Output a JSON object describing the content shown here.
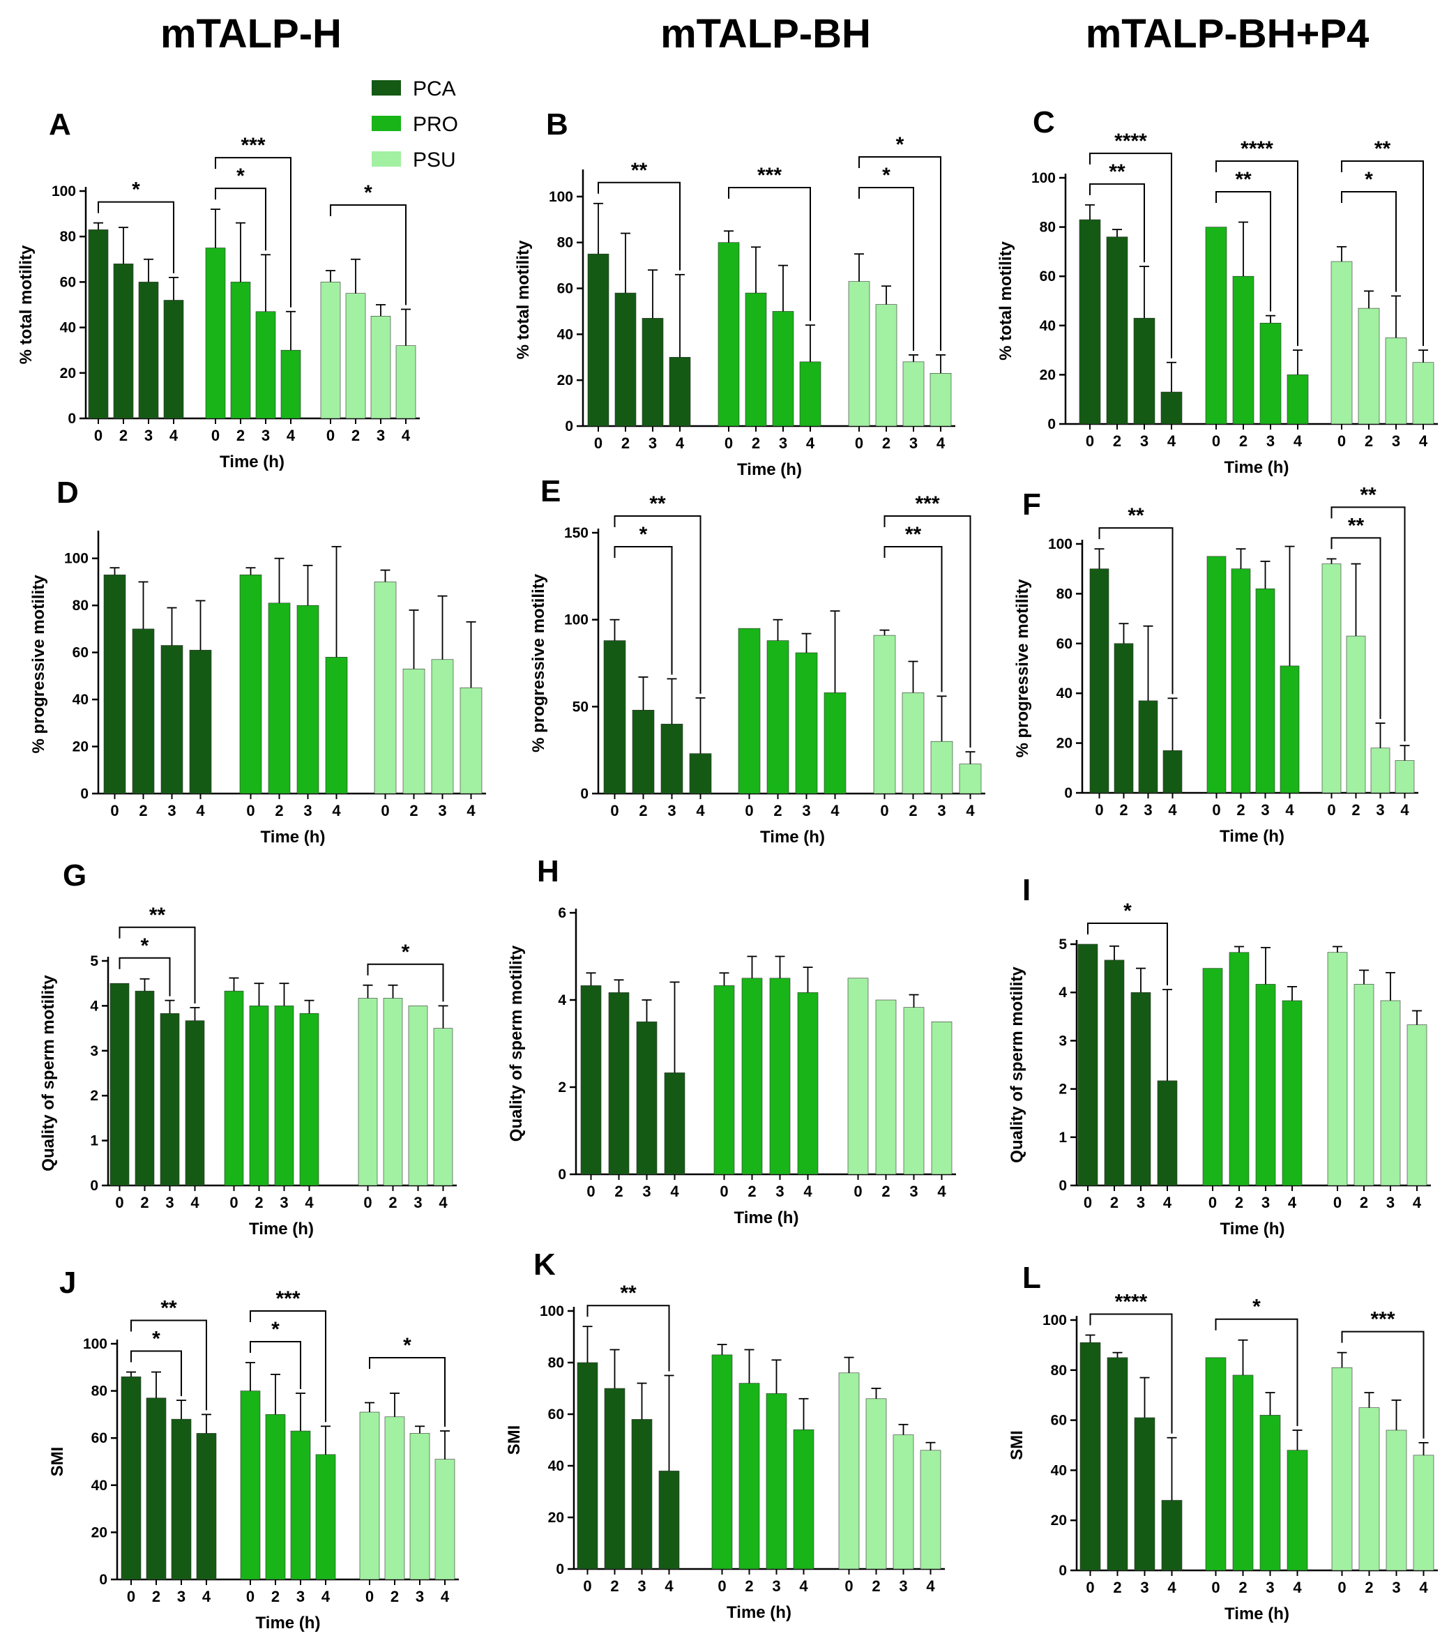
{
  "columns": [
    "mTALP-H",
    "mTALP-BH",
    "mTALP-BH+P4"
  ],
  "legend": [
    "PCA",
    "PRO",
    "PSU"
  ],
  "colors": {
    "PCA": "#145a14",
    "PRO": "#18b418",
    "PSU": "#a2f0a2",
    "axis": "#000000"
  },
  "chart_data": [
    {
      "id": "A",
      "type": "bar",
      "label": "A",
      "ylabel": "% total motility",
      "xlabel": "Time (h)",
      "ylim": [
        0,
        100
      ],
      "yticks": [
        0,
        20,
        40,
        60,
        80,
        100
      ],
      "xticklabels": [
        "0",
        "2",
        "3",
        "4"
      ],
      "series": [
        {
          "name": "PCA",
          "values": [
            83,
            68,
            60,
            52
          ],
          "errors": [
            3,
            16,
            10,
            10
          ]
        },
        {
          "name": "PRO",
          "values": [
            75,
            60,
            47,
            30
          ],
          "errors": [
            17,
            26,
            25,
            17
          ]
        },
        {
          "name": "PSU",
          "values": [
            60,
            55,
            45,
            32
          ],
          "errors": [
            5,
            15,
            5,
            16
          ]
        }
      ],
      "significance": [
        {
          "series": "PCA",
          "from": 0,
          "to": 3,
          "stars": "*"
        },
        {
          "series": "PRO",
          "from": 0,
          "to": 2,
          "stars": "*"
        },
        {
          "series": "PRO",
          "from": 0,
          "to": 3,
          "stars": "***"
        },
        {
          "series": "PSU",
          "from": 0,
          "to": 3,
          "stars": "*"
        }
      ]
    },
    {
      "id": "B",
      "type": "bar",
      "label": "B",
      "ylabel": "% total motility",
      "xlabel": "Time (h)",
      "ylim": [
        0,
        110
      ],
      "yticks": [
        0,
        20,
        40,
        60,
        80,
        100
      ],
      "xticklabels": [
        "0",
        "2",
        "3",
        "4"
      ],
      "series": [
        {
          "name": "PCA",
          "values": [
            75,
            58,
            47,
            30
          ],
          "errors": [
            22,
            26,
            21,
            36
          ]
        },
        {
          "name": "PRO",
          "values": [
            80,
            58,
            50,
            28
          ],
          "errors": [
            5,
            20,
            20,
            16
          ]
        },
        {
          "name": "PSU",
          "values": [
            63,
            53,
            28,
            23
          ],
          "errors": [
            12,
            8,
            3,
            8
          ]
        }
      ],
      "significance": [
        {
          "series": "PCA",
          "from": 0,
          "to": 3,
          "stars": "**"
        },
        {
          "series": "PRO",
          "from": 0,
          "to": 3,
          "stars": "***"
        },
        {
          "series": "PSU",
          "from": 0,
          "to": 2,
          "stars": "*"
        },
        {
          "series": "PSU",
          "from": 0,
          "to": 3,
          "stars": "*"
        }
      ]
    },
    {
      "id": "C",
      "type": "bar",
      "label": "C",
      "ylabel": "% total motility",
      "xlabel": "Time (h)",
      "ylim": [
        0,
        100
      ],
      "yticks": [
        0,
        20,
        40,
        60,
        80,
        100
      ],
      "xticklabels": [
        "0",
        "2",
        "3",
        "4"
      ],
      "series": [
        {
          "name": "PCA",
          "values": [
            83,
            76,
            43,
            13
          ],
          "errors": [
            6,
            3,
            21,
            12
          ]
        },
        {
          "name": "PRO",
          "values": [
            80,
            60,
            41,
            20
          ],
          "errors": [
            0,
            22,
            3,
            10
          ]
        },
        {
          "name": "PSU",
          "values": [
            66,
            47,
            35,
            25
          ],
          "errors": [
            6,
            7,
            17,
            5
          ]
        }
      ],
      "significance": [
        {
          "series": "PCA",
          "from": 0,
          "to": 2,
          "stars": "**"
        },
        {
          "series": "PCA",
          "from": 0,
          "to": 3,
          "stars": "****"
        },
        {
          "series": "PRO",
          "from": 0,
          "to": 2,
          "stars": "**"
        },
        {
          "series": "PRO",
          "from": 0,
          "to": 3,
          "stars": "****"
        },
        {
          "series": "PSU",
          "from": 0,
          "to": 2,
          "stars": "*"
        },
        {
          "series": "PSU",
          "from": 0,
          "to": 3,
          "stars": "**"
        }
      ]
    },
    {
      "id": "D",
      "type": "bar",
      "label": "D",
      "ylabel": "% progressive motility",
      "xlabel": "Time (h)",
      "ylim": [
        0,
        110
      ],
      "yticks": [
        0,
        20,
        40,
        60,
        80,
        100
      ],
      "xticklabels": [
        "0",
        "2",
        "3",
        "4"
      ],
      "series": [
        {
          "name": "PCA",
          "values": [
            93,
            70,
            63,
            61
          ],
          "errors": [
            3,
            20,
            16,
            21
          ]
        },
        {
          "name": "PRO",
          "values": [
            93,
            81,
            80,
            58
          ],
          "errors": [
            3,
            19,
            17,
            47
          ]
        },
        {
          "name": "PSU",
          "values": [
            90,
            53,
            57,
            45
          ],
          "errors": [
            5,
            25,
            27,
            28
          ]
        }
      ],
      "significance": []
    },
    {
      "id": "E",
      "type": "bar",
      "label": "E",
      "ylabel": "% progressive motility",
      "xlabel": "Time (h)",
      "ylim": [
        0,
        150
      ],
      "yticks": [
        0,
        50,
        100,
        150
      ],
      "xticklabels": [
        "0",
        "2",
        "3",
        "4"
      ],
      "series": [
        {
          "name": "PCA",
          "values": [
            88,
            48,
            40,
            23
          ],
          "errors": [
            12,
            19,
            26,
            32
          ]
        },
        {
          "name": "PRO",
          "values": [
            95,
            88,
            81,
            58
          ],
          "errors": [
            0,
            12,
            11,
            47
          ]
        },
        {
          "name": "PSU",
          "values": [
            91,
            58,
            30,
            17
          ],
          "errors": [
            3,
            18,
            26,
            7
          ]
        }
      ],
      "significance": [
        {
          "series": "PCA",
          "from": 0,
          "to": 2,
          "stars": "*"
        },
        {
          "series": "PCA",
          "from": 0,
          "to": 3,
          "stars": "**"
        },
        {
          "series": "PSU",
          "from": 0,
          "to": 2,
          "stars": "**"
        },
        {
          "series": "PSU",
          "from": 0,
          "to": 3,
          "stars": "***"
        }
      ]
    },
    {
      "id": "F",
      "type": "bar",
      "label": "F",
      "ylabel": "% progressive motility",
      "xlabel": "Time (h)",
      "ylim": [
        0,
        100
      ],
      "yticks": [
        0,
        20,
        40,
        60,
        80,
        100
      ],
      "xticklabels": [
        "0",
        "2",
        "3",
        "4"
      ],
      "series": [
        {
          "name": "PCA",
          "values": [
            90,
            60,
            37,
            17
          ],
          "errors": [
            8,
            8,
            30,
            21
          ]
        },
        {
          "name": "PRO",
          "values": [
            95,
            90,
            82,
            51
          ],
          "errors": [
            0,
            8,
            11,
            48
          ]
        },
        {
          "name": "PSU",
          "values": [
            92,
            63,
            18,
            13
          ],
          "errors": [
            2,
            29,
            10,
            6
          ]
        }
      ],
      "significance": [
        {
          "series": "PCA",
          "from": 0,
          "to": 3,
          "stars": "**"
        },
        {
          "series": "PSU",
          "from": 0,
          "to": 2,
          "stars": "**"
        },
        {
          "series": "PSU",
          "from": 0,
          "to": 3,
          "stars": "**"
        }
      ]
    },
    {
      "id": "G",
      "type": "bar",
      "label": "G",
      "ylabel": "Quality of sperm motility",
      "xlabel": "Time (h)",
      "ylim": [
        0,
        5
      ],
      "yticks": [
        0,
        1,
        2,
        3,
        4,
        5
      ],
      "xticklabels": [
        "0",
        "2",
        "3",
        "4"
      ],
      "series": [
        {
          "name": "PCA",
          "values": [
            4.5,
            4.33,
            3.83,
            3.67
          ],
          "errors": [
            0,
            0.27,
            0.29,
            0.29
          ]
        },
        {
          "name": "PRO",
          "values": [
            4.33,
            4.0,
            4.0,
            3.83
          ],
          "errors": [
            0.29,
            0.5,
            0.5,
            0.29
          ]
        },
        {
          "name": "PSU",
          "values": [
            4.17,
            4.17,
            4.0,
            3.5
          ],
          "errors": [
            0.29,
            0.29,
            0,
            0.5
          ]
        }
      ],
      "significance": [
        {
          "series": "PCA",
          "from": 0,
          "to": 2,
          "stars": "*"
        },
        {
          "series": "PCA",
          "from": 0,
          "to": 3,
          "stars": "**"
        },
        {
          "series": "PSU",
          "from": 0,
          "to": 3,
          "stars": "*"
        }
      ]
    },
    {
      "id": "H",
      "type": "bar",
      "label": "H",
      "ylabel": "Quality of sperm motility",
      "xlabel": "Time (h)",
      "ylim": [
        0,
        6
      ],
      "yticks": [
        0,
        2,
        4,
        6
      ],
      "xticklabels": [
        "0",
        "2",
        "3",
        "4"
      ],
      "series": [
        {
          "name": "PCA",
          "values": [
            4.33,
            4.17,
            3.5,
            2.33
          ],
          "errors": [
            0.29,
            0.29,
            0.5,
            2.08
          ]
        },
        {
          "name": "PRO",
          "values": [
            4.33,
            4.5,
            4.5,
            4.17
          ],
          "errors": [
            0.29,
            0.5,
            0.5,
            0.58
          ]
        },
        {
          "name": "PSU",
          "values": [
            4.5,
            4.0,
            3.83,
            3.5
          ],
          "errors": [
            0,
            0,
            0.29,
            0
          ]
        }
      ],
      "significance": []
    },
    {
      "id": "I",
      "type": "bar",
      "label": "I",
      "ylabel": "Quality of sperm motility",
      "xlabel": "Time (h)",
      "ylim": [
        0,
        5
      ],
      "yticks": [
        0,
        1,
        2,
        3,
        4,
        5
      ],
      "xticklabels": [
        "0",
        "2",
        "3",
        "4"
      ],
      "series": [
        {
          "name": "PCA",
          "values": [
            5.0,
            4.67,
            4.0,
            2.17
          ],
          "errors": [
            0,
            0.29,
            0.5,
            1.89
          ]
        },
        {
          "name": "PRO",
          "values": [
            4.5,
            4.83,
            4.17,
            3.83
          ],
          "errors": [
            0,
            0.12,
            0.76,
            0.29
          ]
        },
        {
          "name": "PSU",
          "values": [
            4.83,
            4.17,
            3.83,
            3.33
          ],
          "errors": [
            0.12,
            0.29,
            0.58,
            0.29
          ]
        }
      ],
      "significance": [
        {
          "series": "PCA",
          "from": 0,
          "to": 3,
          "stars": "*"
        }
      ]
    },
    {
      "id": "J",
      "type": "bar",
      "label": "J",
      "ylabel": "SMI",
      "xlabel": "Time (h)",
      "ylim": [
        0,
        100
      ],
      "yticks": [
        0,
        20,
        40,
        60,
        80,
        100
      ],
      "xticklabels": [
        "0",
        "2",
        "3",
        "4"
      ],
      "series": [
        {
          "name": "PCA",
          "values": [
            86,
            77,
            68,
            62
          ],
          "errors": [
            2,
            11,
            8,
            8
          ]
        },
        {
          "name": "PRO",
          "values": [
            80,
            70,
            63,
            53
          ],
          "errors": [
            12,
            17,
            16,
            12
          ]
        },
        {
          "name": "PSU",
          "values": [
            71,
            69,
            62,
            51
          ],
          "errors": [
            4,
            10,
            3,
            12
          ]
        }
      ],
      "significance": [
        {
          "series": "PCA",
          "from": 0,
          "to": 2,
          "stars": "*"
        },
        {
          "series": "PCA",
          "from": 0,
          "to": 3,
          "stars": "**"
        },
        {
          "series": "PRO",
          "from": 0,
          "to": 2,
          "stars": "*"
        },
        {
          "series": "PRO",
          "from": 0,
          "to": 3,
          "stars": "***"
        },
        {
          "series": "PSU",
          "from": 0,
          "to": 3,
          "stars": "*"
        }
      ]
    },
    {
      "id": "K",
      "type": "bar",
      "label": "K",
      "ylabel": "SMI",
      "xlabel": "Time (h)",
      "ylim": [
        0,
        100
      ],
      "yticks": [
        0,
        20,
        40,
        60,
        80,
        100
      ],
      "xticklabels": [
        "0",
        "2",
        "3",
        "4"
      ],
      "series": [
        {
          "name": "PCA",
          "values": [
            80,
            70,
            58,
            38
          ],
          "errors": [
            14,
            15,
            14,
            37
          ]
        },
        {
          "name": "PRO",
          "values": [
            83,
            72,
            68,
            54
          ],
          "errors": [
            4,
            13,
            13,
            12
          ]
        },
        {
          "name": "PSU",
          "values": [
            76,
            66,
            52,
            46
          ],
          "errors": [
            6,
            4,
            4,
            3
          ]
        }
      ],
      "significance": [
        {
          "series": "PCA",
          "from": 0,
          "to": 3,
          "stars": "**"
        }
      ]
    },
    {
      "id": "L",
      "type": "bar",
      "label": "L",
      "ylabel": "SMI",
      "xlabel": "Time (h)",
      "ylim": [
        0,
        100
      ],
      "yticks": [
        0,
        20,
        40,
        60,
        80,
        100
      ],
      "xticklabels": [
        "0",
        "2",
        "3",
        "4"
      ],
      "series": [
        {
          "name": "PCA",
          "values": [
            91,
            85,
            61,
            28
          ],
          "errors": [
            3,
            2,
            16,
            25
          ]
        },
        {
          "name": "PRO",
          "values": [
            85,
            78,
            62,
            48
          ],
          "errors": [
            0,
            14,
            9,
            8
          ]
        },
        {
          "name": "PSU",
          "values": [
            81,
            65,
            56,
            46
          ],
          "errors": [
            6,
            6,
            12,
            5
          ]
        }
      ],
      "significance": [
        {
          "series": "PCA",
          "from": 0,
          "to": 3,
          "stars": "****"
        },
        {
          "series": "PRO",
          "from": 0,
          "to": 3,
          "stars": "*"
        },
        {
          "series": "PSU",
          "from": 0,
          "to": 3,
          "stars": "***"
        }
      ]
    }
  ]
}
